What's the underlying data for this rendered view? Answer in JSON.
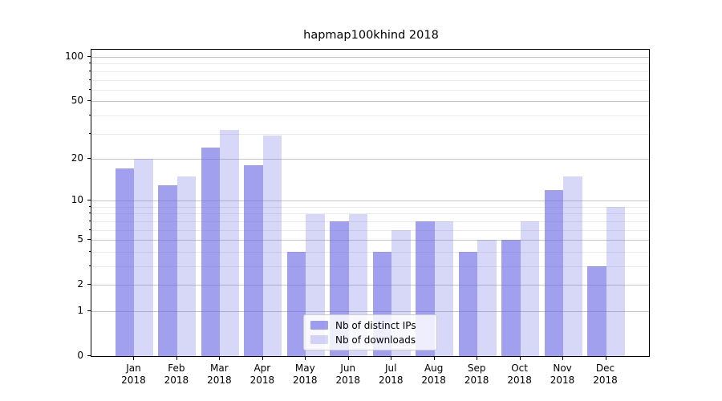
{
  "title": "hapmap100khind 2018",
  "chart_data": {
    "type": "bar",
    "categories": [
      "Jan",
      "Feb",
      "Mar",
      "Apr",
      "May",
      "Jun",
      "Jul",
      "Aug",
      "Sep",
      "Oct",
      "Nov",
      "Dec"
    ],
    "category_year": "2018",
    "series": [
      {
        "name": "Nb of distinct IPs",
        "color": "rgba(101,101,229,0.62)",
        "values": [
          17,
          13,
          24,
          18,
          4,
          7,
          4,
          7,
          4,
          5,
          12,
          3
        ]
      },
      {
        "name": "Nb of downloads",
        "color": "rgba(101,101,229,0.26)",
        "values": [
          20,
          15,
          32,
          29,
          8,
          8,
          6,
          7,
          5,
          7,
          15,
          9
        ]
      }
    ],
    "scale": "log1p",
    "ylim": [
      0,
      112
    ],
    "yticks_major": [
      0,
      1,
      2,
      5,
      10,
      20,
      50,
      100
    ],
    "yticks_minor": [
      3,
      4,
      6,
      7,
      8,
      9,
      30,
      40,
      60,
      70,
      80,
      90
    ],
    "grid": true,
    "legend_position": "lower center"
  },
  "colors": {
    "grid_major": "#c6c6c6",
    "grid_minor": "#eaeaea",
    "spine": "#000000",
    "legend_border": "#cccccc",
    "legend_bg": "rgba(255,255,255,0.82)",
    "background": "#ffffff",
    "text": "#000000"
  }
}
